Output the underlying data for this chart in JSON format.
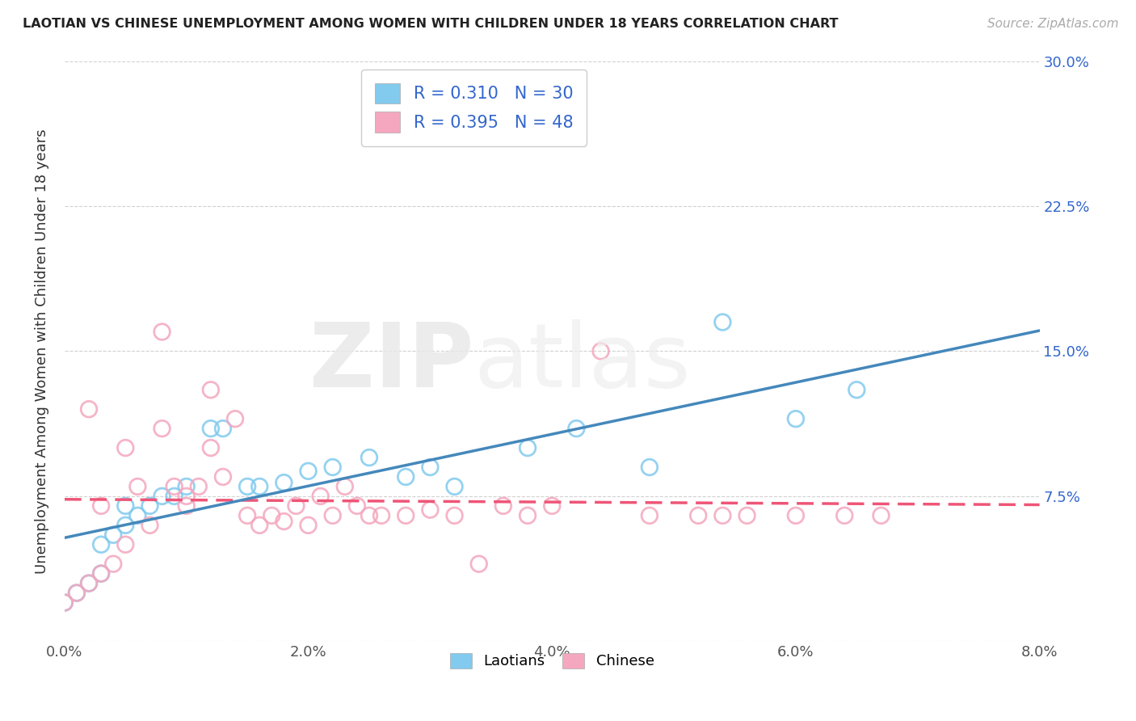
{
  "title": "LAOTIAN VS CHINESE UNEMPLOYMENT AMONG WOMEN WITH CHILDREN UNDER 18 YEARS CORRELATION CHART",
  "source": "Source: ZipAtlas.com",
  "ylabel": "Unemployment Among Women with Children Under 18 years",
  "xlim": [
    0.0,
    0.08
  ],
  "ylim": [
    0.0,
    0.3
  ],
  "xtick_vals": [
    0.0,
    0.02,
    0.04,
    0.06,
    0.08
  ],
  "xtick_labels": [
    "0.0%",
    "2.0%",
    "4.0%",
    "6.0%",
    "8.0%"
  ],
  "ytick_vals": [
    0.0,
    0.075,
    0.15,
    0.225,
    0.3
  ],
  "ytick_labels": [
    "",
    "7.5%",
    "15.0%",
    "22.5%",
    "30.0%"
  ],
  "bg_color": "#ffffff",
  "grid_color": "#cccccc",
  "laotian_color": "#82caee",
  "chinese_color": "#f4a7be",
  "laotian_edge_color": "#5599cc",
  "chinese_edge_color": "#dd7799",
  "laotian_line_color": "#4488bb",
  "chinese_line_color": "#ee5577",
  "stat_color": "#3366cc",
  "laotian_R": 0.31,
  "laotian_N": 30,
  "chinese_R": 0.395,
  "chinese_N": 48,
  "legend_label_1": "Laotians",
  "legend_label_2": "Chinese",
  "laotian_x": [
    0.0,
    0.001,
    0.002,
    0.003,
    0.003,
    0.004,
    0.005,
    0.005,
    0.006,
    0.007,
    0.008,
    0.009,
    0.01,
    0.012,
    0.013,
    0.015,
    0.016,
    0.018,
    0.02,
    0.022,
    0.025,
    0.028,
    0.03,
    0.032,
    0.038,
    0.042,
    0.048,
    0.054,
    0.06,
    0.065
  ],
  "laotian_y": [
    0.02,
    0.025,
    0.03,
    0.035,
    0.05,
    0.055,
    0.06,
    0.07,
    0.065,
    0.07,
    0.075,
    0.075,
    0.08,
    0.11,
    0.11,
    0.08,
    0.08,
    0.082,
    0.088,
    0.09,
    0.095,
    0.085,
    0.09,
    0.08,
    0.1,
    0.11,
    0.09,
    0.165,
    0.115,
    0.13
  ],
  "chinese_x": [
    0.0,
    0.001,
    0.002,
    0.002,
    0.003,
    0.003,
    0.004,
    0.005,
    0.005,
    0.006,
    0.007,
    0.008,
    0.008,
    0.009,
    0.01,
    0.01,
    0.011,
    0.012,
    0.012,
    0.013,
    0.014,
    0.015,
    0.016,
    0.017,
    0.018,
    0.019,
    0.02,
    0.021,
    0.022,
    0.023,
    0.024,
    0.025,
    0.026,
    0.028,
    0.03,
    0.032,
    0.034,
    0.036,
    0.038,
    0.04,
    0.044,
    0.048,
    0.052,
    0.054,
    0.056,
    0.06,
    0.064,
    0.067
  ],
  "chinese_y": [
    0.02,
    0.025,
    0.03,
    0.12,
    0.035,
    0.07,
    0.04,
    0.05,
    0.1,
    0.08,
    0.06,
    0.11,
    0.16,
    0.08,
    0.07,
    0.075,
    0.08,
    0.1,
    0.13,
    0.085,
    0.115,
    0.065,
    0.06,
    0.065,
    0.062,
    0.07,
    0.06,
    0.075,
    0.065,
    0.08,
    0.07,
    0.065,
    0.065,
    0.065,
    0.068,
    0.065,
    0.04,
    0.07,
    0.065,
    0.07,
    0.15,
    0.065,
    0.065,
    0.065,
    0.065,
    0.065,
    0.065,
    0.065
  ]
}
